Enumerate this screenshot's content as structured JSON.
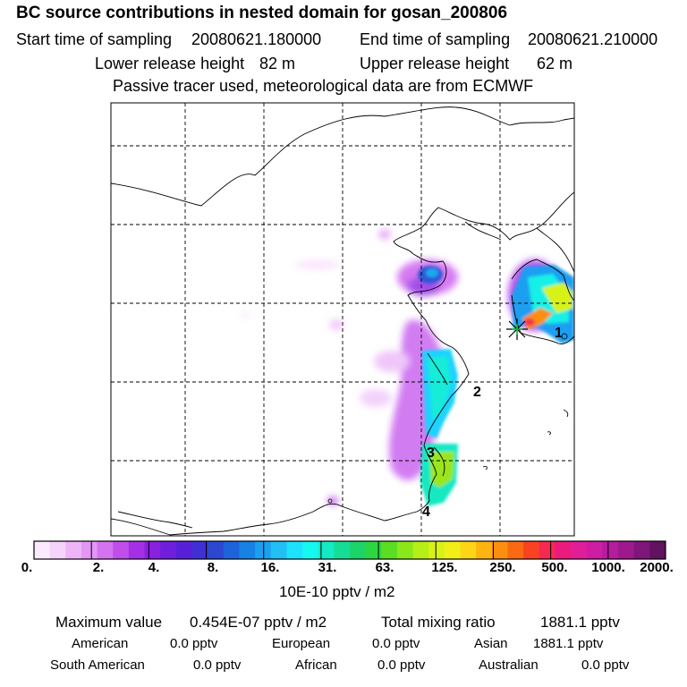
{
  "header": {
    "title": "BC  source contributions in nested domain for gosan_200806",
    "start_label": "Start time of sampling",
    "start_value": "20080621.180000",
    "end_label": "End time of sampling",
    "end_value": "20080621.210000",
    "lower_label": "Lower release height",
    "lower_value": "82 m",
    "upper_label": "Upper release height",
    "upper_value": "62 m",
    "tracer_note": "Passive tracer used, meteorological data are from ECMWF"
  },
  "chart_data": {
    "type": "heatmap",
    "description_units": "10E-10 pptv / m2",
    "colorbar": {
      "ticks": [
        "0.",
        "2.",
        "4.",
        "8.",
        "16.",
        "31.",
        "63.",
        "125.",
        "250.",
        "500.",
        "1000.",
        "2000."
      ],
      "colors": [
        "#fbeafd",
        "#f6d3fb",
        "#eeb4f8",
        "#e496f4",
        "#d473f0",
        "#bf4eeb",
        "#a52fe6",
        "#8a20e0",
        "#6f1fdc",
        "#5720d8",
        "#4030d4",
        "#2d47d2",
        "#1e63da",
        "#1781e4",
        "#1aa0ee",
        "#22bff7",
        "#1ee0ff",
        "#15f7f0",
        "#14eac4",
        "#16dd96",
        "#1cd468",
        "#2cd640",
        "#5ade22",
        "#8ae81a",
        "#b4ef18",
        "#d8f216",
        "#f2ef16",
        "#fcd616",
        "#fdb412",
        "#fd8f10",
        "#fb6a12",
        "#f84222",
        "#f42a52",
        "#ec1a7c",
        "#e01e98",
        "#cc1da4",
        "#b61c9e",
        "#9c1a8e",
        "#7f167a",
        "#611360"
      ],
      "unit_label": "10E-10 pptv / m2"
    },
    "receptor_labels": [
      "1",
      "2",
      "3",
      "4"
    ],
    "grid": true
  },
  "summary": {
    "max_label": "Maximum value",
    "max_value": "0.454E-07 pptv / m2",
    "total_label": "Total mixing ratio",
    "total_value": "1881.1 pptv",
    "regions": [
      {
        "name": "American",
        "value": "0.0 pptv"
      },
      {
        "name": "European",
        "value": "0.0 pptv"
      },
      {
        "name": "Asian",
        "value": "1881.1 pptv"
      },
      {
        "name": "South American",
        "value": "0.0 pptv"
      },
      {
        "name": "African",
        "value": "0.0 pptv"
      },
      {
        "name": "Australian",
        "value": "0.0 pptv"
      }
    ]
  }
}
